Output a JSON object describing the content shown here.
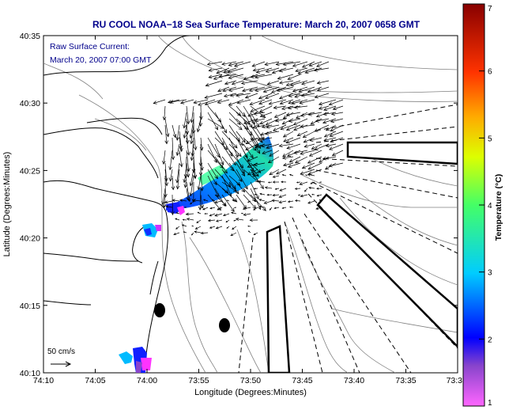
{
  "title": "RU COOL  NOAA−18  Sea Surface Temperature:  March 20, 2007 0658 GMT",
  "subtitle_line1": "Raw Surface Current:",
  "subtitle_line2": "March 20, 2007 07:00 GMT",
  "x_axis": {
    "label": "Longitude (Degrees:Minutes)",
    "ticks": [
      "74:10",
      "74:05",
      "74:00",
      "73:55",
      "73:50",
      "73:45",
      "73:40",
      "73:35",
      "73:3"
    ]
  },
  "y_axis": {
    "label": "Latitude (Degrees:Minutes)",
    "ticks": [
      "40:35",
      "40:30",
      "40:25",
      "40:20",
      "40:15",
      "40:10"
    ]
  },
  "colorbar": {
    "label": "Temperature (°C)",
    "ticks": [
      "7",
      "6",
      "5",
      "4",
      "3",
      "2",
      "1"
    ],
    "range": [
      1,
      7
    ]
  },
  "scale_arrow": {
    "label": "50 cm/s"
  },
  "colors": {
    "title": "#00008b",
    "land_outline": "#000000",
    "bathymetry": "#808080",
    "shipping_lanes": "#000000"
  }
}
